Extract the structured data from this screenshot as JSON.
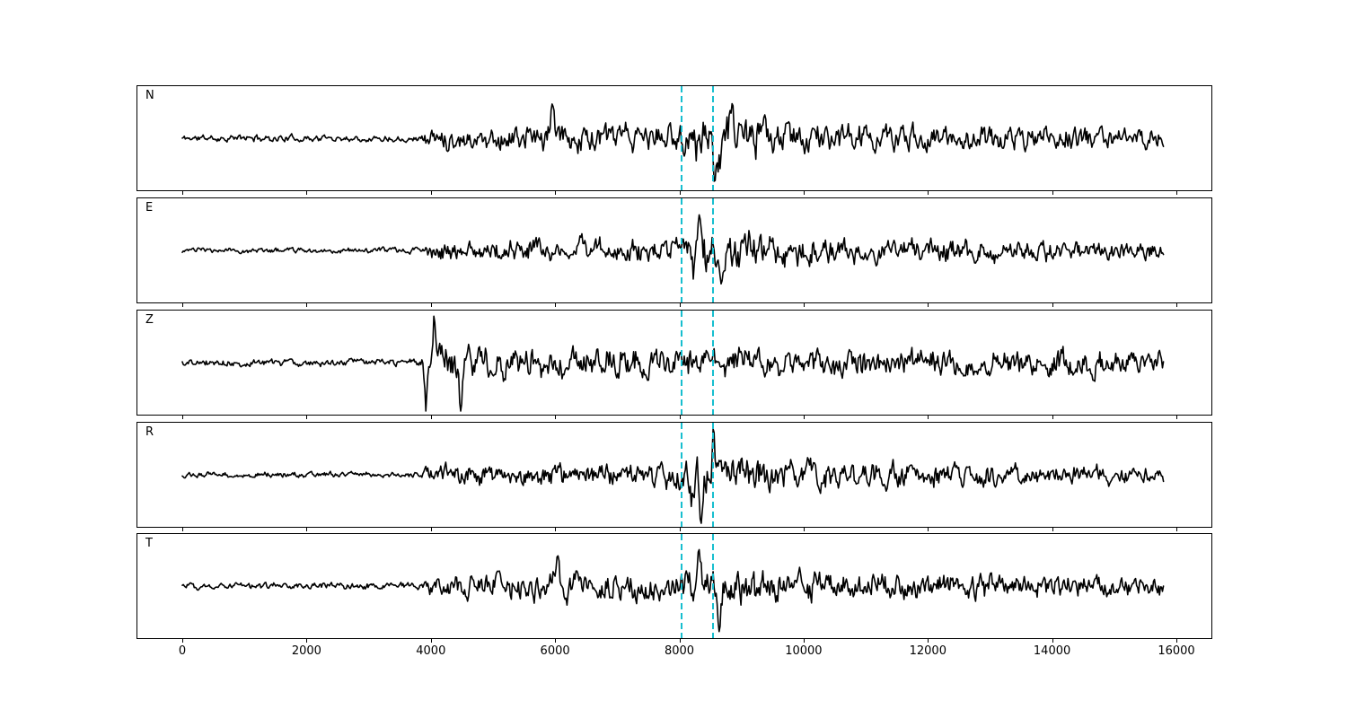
{
  "figure": {
    "background": "#ffffff",
    "trace_color": "#000000",
    "axis_color": "#000000",
    "pick_line_color": "#17becf",
    "x_tick_labels": [
      "0",
      "2000",
      "4000",
      "6000",
      "8000",
      "10000",
      "12000",
      "14000",
      "16000"
    ]
  },
  "chart_data": {
    "type": "line",
    "kind": "multichannel-seismogram",
    "title": "",
    "xlabel": "",
    "ylabel": "",
    "grid": false,
    "legend": null,
    "x_tick_values": [
      0,
      2000,
      4000,
      6000,
      8000,
      10000,
      12000,
      14000,
      16000
    ],
    "xlim": [
      -740,
      16590
    ],
    "n_samples": 15800,
    "pick_lines": {
      "x_values": [
        8036,
        8535
      ],
      "color": "#17becf",
      "line_style": "dashed",
      "spans_all_panels": true
    },
    "amplitude_note": "envelope amplitudes are peak excursions in relative units; 58 = panel half-height; spikes are [sample, signed_peak]",
    "channels": [
      {
        "label": "N",
        "seed": 11,
        "envelope": [
          [
            0,
            5
          ],
          [
            3850,
            5
          ],
          [
            3960,
            16
          ],
          [
            5000,
            18
          ],
          [
            5800,
            22
          ],
          [
            6400,
            22
          ],
          [
            7200,
            19
          ],
          [
            7900,
            24
          ],
          [
            8250,
            30
          ],
          [
            8700,
            33
          ],
          [
            9200,
            29
          ],
          [
            9900,
            23
          ],
          [
            10900,
            20
          ],
          [
            12500,
            18
          ],
          [
            14200,
            17
          ],
          [
            15800,
            13
          ]
        ],
        "spikes": [
          [
            5950,
            40
          ],
          [
            8560,
            -42
          ],
          [
            8850,
            48
          ]
        ]
      },
      {
        "label": "E",
        "seed": 23,
        "envelope": [
          [
            0,
            4
          ],
          [
            3850,
            4
          ],
          [
            3960,
            14
          ],
          [
            5000,
            15
          ],
          [
            6500,
            16
          ],
          [
            7800,
            16
          ],
          [
            8150,
            22
          ],
          [
            8350,
            38
          ],
          [
            8650,
            33
          ],
          [
            9100,
            29
          ],
          [
            9700,
            23
          ],
          [
            10600,
            18
          ],
          [
            12000,
            16
          ],
          [
            13600,
            15
          ],
          [
            15800,
            12
          ]
        ],
        "spikes": [
          [
            8230,
            -30
          ],
          [
            8340,
            50
          ],
          [
            8700,
            -36
          ]
        ]
      },
      {
        "label": "Z",
        "seed": 37,
        "envelope": [
          [
            0,
            5
          ],
          [
            3820,
            5
          ],
          [
            3900,
            34
          ],
          [
            4150,
            30
          ],
          [
            4700,
            26
          ],
          [
            5400,
            22
          ],
          [
            6200,
            22
          ],
          [
            7200,
            22
          ],
          [
            8200,
            22
          ],
          [
            9200,
            22
          ],
          [
            10300,
            21
          ],
          [
            11600,
            21
          ],
          [
            13200,
            19
          ],
          [
            15800,
            17
          ]
        ],
        "spikes": [
          [
            3920,
            -50
          ],
          [
            4060,
            40
          ],
          [
            4480,
            -35
          ]
        ]
      },
      {
        "label": "R",
        "seed": 53,
        "envelope": [
          [
            0,
            4
          ],
          [
            3850,
            4
          ],
          [
            3960,
            14
          ],
          [
            5000,
            16
          ],
          [
            6500,
            16
          ],
          [
            7700,
            17
          ],
          [
            8100,
            24
          ],
          [
            8400,
            33
          ],
          [
            8750,
            29
          ],
          [
            9300,
            25
          ],
          [
            10100,
            20
          ],
          [
            11200,
            18
          ],
          [
            12600,
            17
          ],
          [
            14100,
            16
          ],
          [
            15800,
            12
          ]
        ],
        "spikes": [
          [
            8200,
            -28
          ],
          [
            8350,
            -50
          ],
          [
            8550,
            44
          ]
        ]
      },
      {
        "label": "T",
        "seed": 71,
        "envelope": [
          [
            0,
            5
          ],
          [
            3850,
            5
          ],
          [
            3960,
            17
          ],
          [
            5000,
            19
          ],
          [
            6000,
            21
          ],
          [
            7000,
            20
          ],
          [
            7800,
            20
          ],
          [
            8250,
            28
          ],
          [
            8850,
            29
          ],
          [
            9600,
            24
          ],
          [
            10600,
            20
          ],
          [
            12100,
            19
          ],
          [
            13600,
            19
          ],
          [
            15800,
            14
          ]
        ],
        "spikes": [
          [
            6050,
            36
          ],
          [
            8320,
            46
          ],
          [
            8650,
            -34
          ]
        ]
      }
    ]
  }
}
